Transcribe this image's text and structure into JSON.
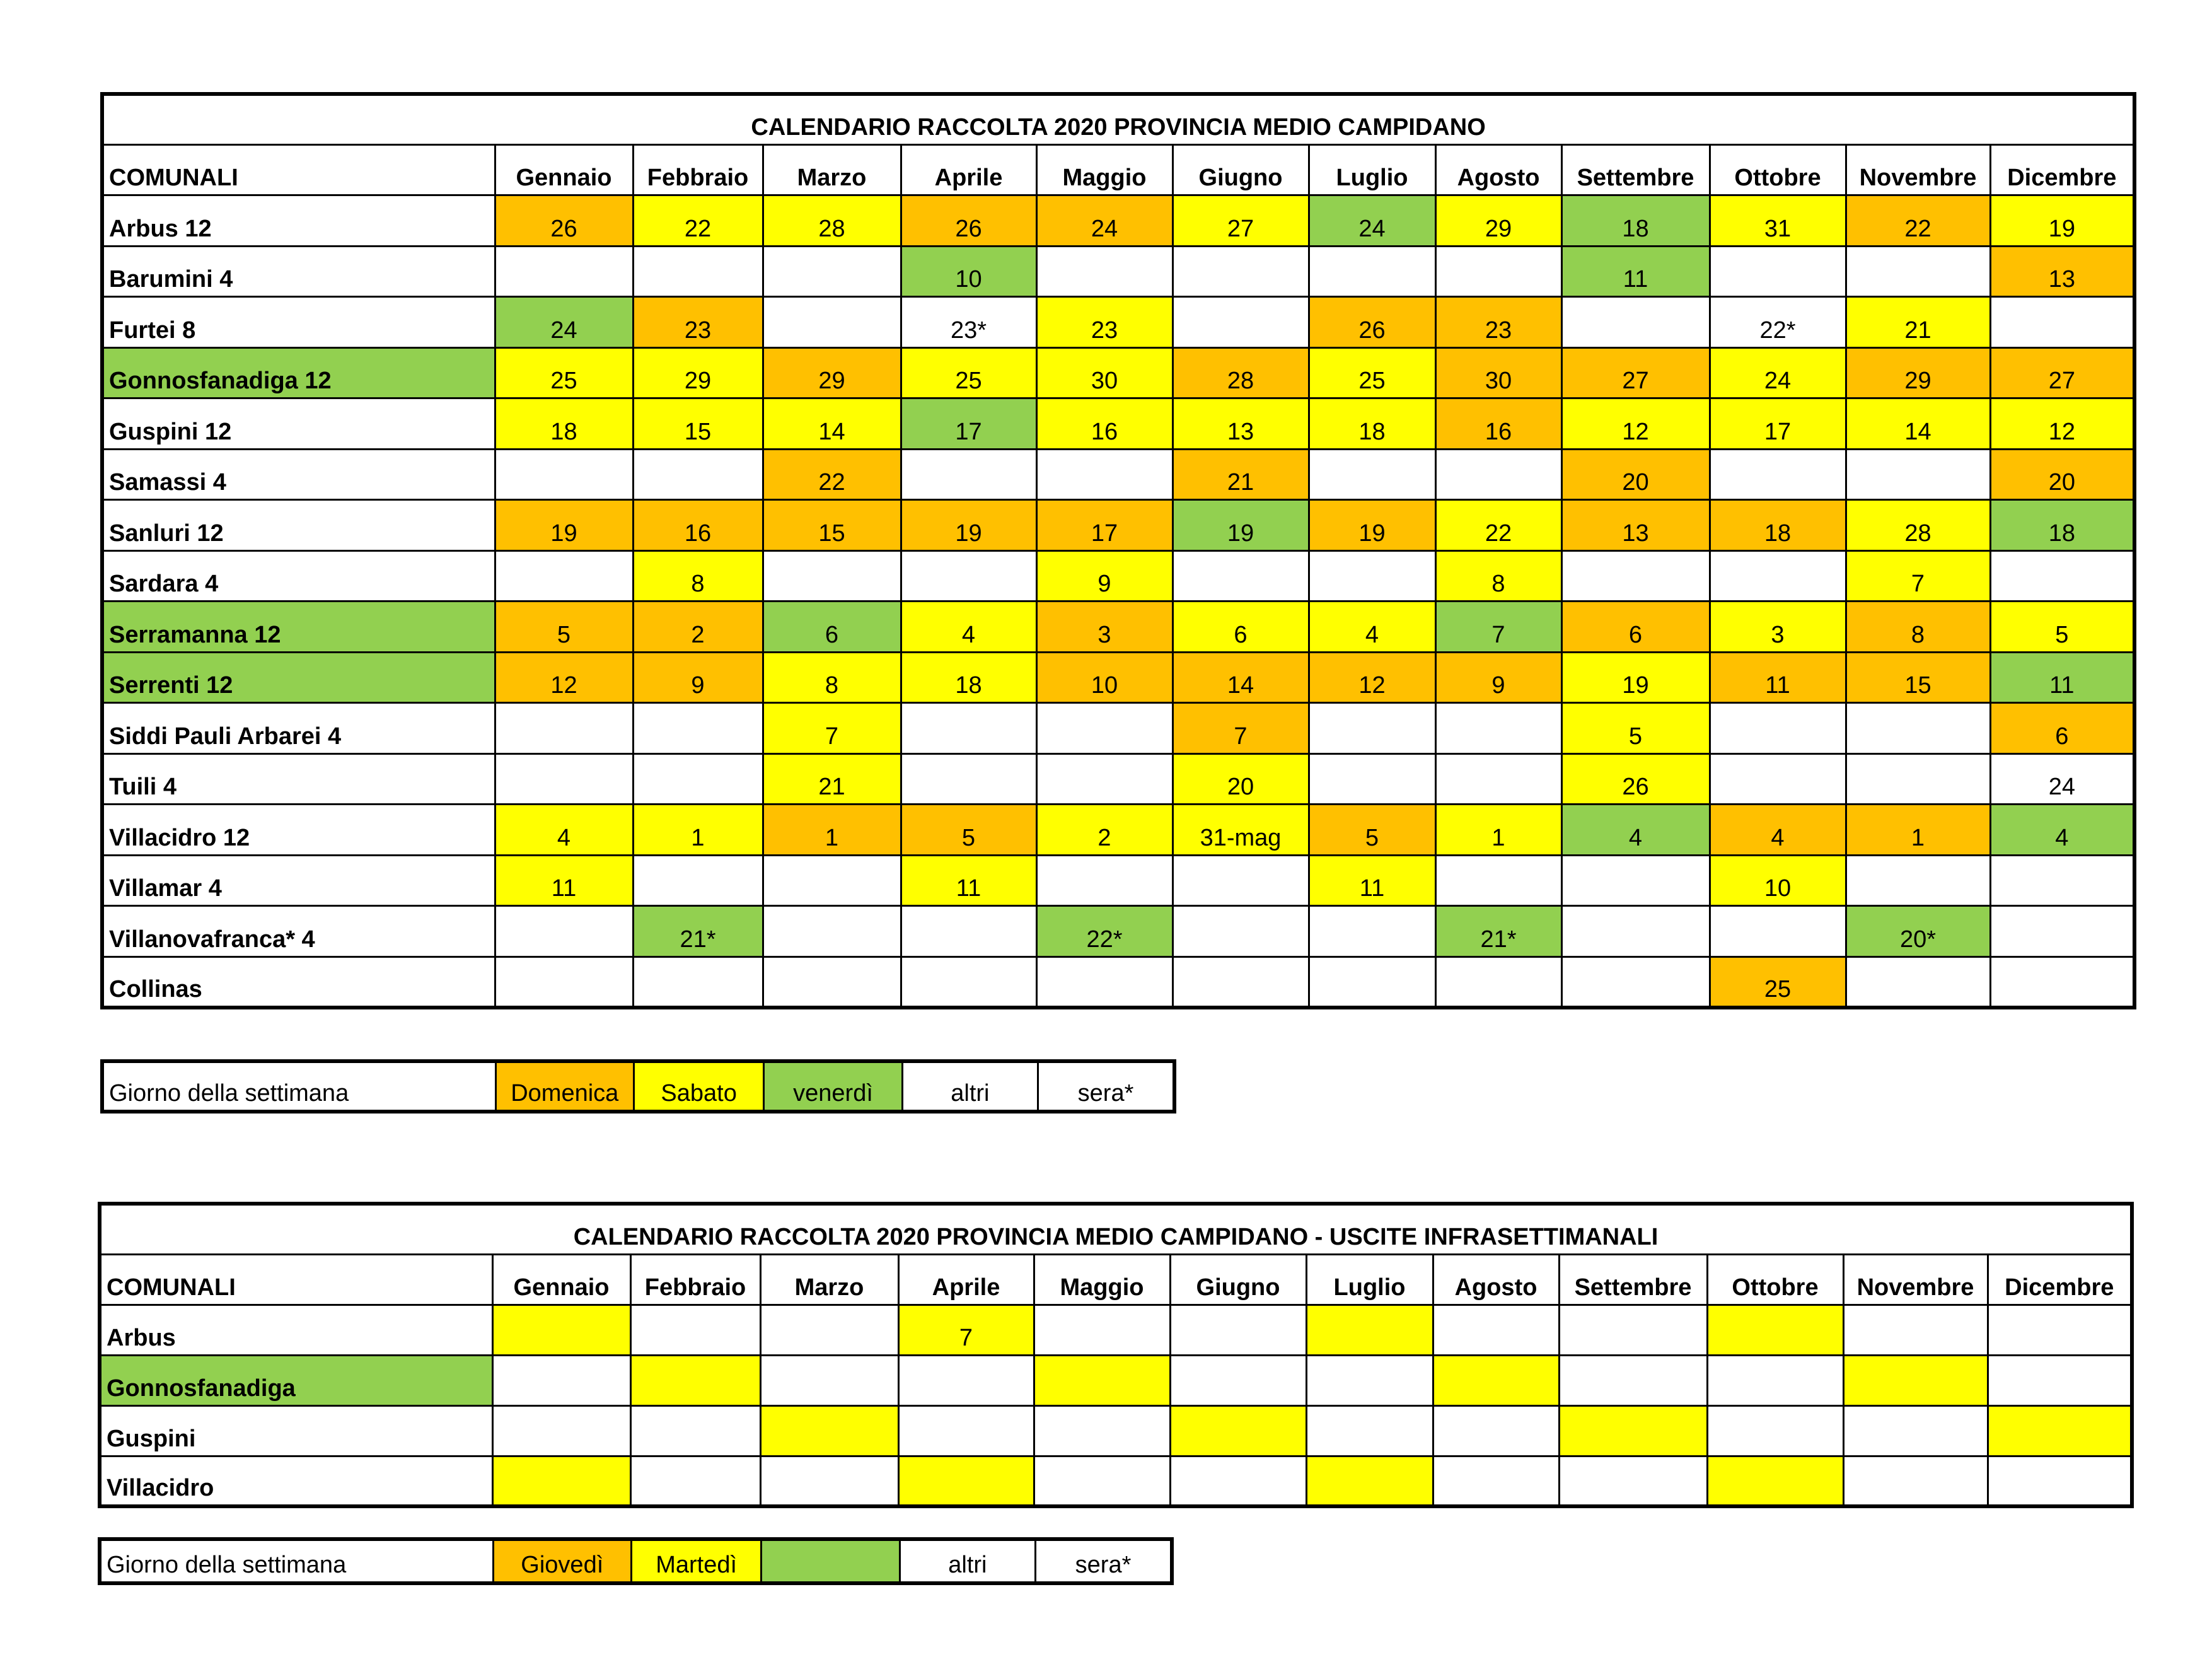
{
  "colors": {
    "domenica": "#ffc000",
    "sabato": "#ffff00",
    "venerdi": "#92d050",
    "altri": "#ffffff"
  },
  "months": [
    "Gennaio",
    "Febbraio",
    "Marzo",
    "Aprile",
    "Maggio",
    "Giugno",
    "Luglio",
    "Agosto",
    "Settembre",
    "Ottobre",
    "Novembre",
    "Dicembre"
  ],
  "table1": {
    "title": "CALENDARIO RACCOLTA 2020 PROVINCIA MEDIO CAMPIDANO",
    "col_header": "COMUNALI",
    "rows": [
      {
        "name": "Arbus  12",
        "color": "w",
        "cells": [
          {
            "v": "26",
            "c": "o"
          },
          {
            "v": "22",
            "c": "y"
          },
          {
            "v": "28",
            "c": "y"
          },
          {
            "v": "26",
            "c": "o"
          },
          {
            "v": "24",
            "c": "o"
          },
          {
            "v": "27",
            "c": "y"
          },
          {
            "v": "24",
            "c": "g"
          },
          {
            "v": "29",
            "c": "y"
          },
          {
            "v": "18",
            "c": "g"
          },
          {
            "v": "31",
            "c": "y"
          },
          {
            "v": "22",
            "c": "o"
          },
          {
            "v": "19",
            "c": "y"
          }
        ]
      },
      {
        "name": "Barumini 4",
        "color": "w",
        "cells": [
          {
            "v": "",
            "c": "w"
          },
          {
            "v": "",
            "c": "w"
          },
          {
            "v": "",
            "c": "w"
          },
          {
            "v": "10",
            "c": "g"
          },
          {
            "v": "",
            "c": "w"
          },
          {
            "v": "",
            "c": "w"
          },
          {
            "v": "",
            "c": "w"
          },
          {
            "v": "",
            "c": "w"
          },
          {
            "v": "11",
            "c": "g"
          },
          {
            "v": "",
            "c": "w"
          },
          {
            "v": "",
            "c": "w"
          },
          {
            "v": "13",
            "c": "o"
          }
        ]
      },
      {
        "name": "Furtei 8",
        "color": "w",
        "cells": [
          {
            "v": "24",
            "c": "g"
          },
          {
            "v": "23",
            "c": "o"
          },
          {
            "v": "",
            "c": "w"
          },
          {
            "v": "23*",
            "c": "w"
          },
          {
            "v": "23",
            "c": "y"
          },
          {
            "v": "",
            "c": "w"
          },
          {
            "v": "26",
            "c": "o"
          },
          {
            "v": "23",
            "c": "o"
          },
          {
            "v": "",
            "c": "w"
          },
          {
            "v": "22*",
            "c": "w"
          },
          {
            "v": "21",
            "c": "y"
          },
          {
            "v": "",
            "c": "w"
          }
        ]
      },
      {
        "name": "Gonnosfanadiga 12",
        "color": "g",
        "cells": [
          {
            "v": "25",
            "c": "y"
          },
          {
            "v": "29",
            "c": "y"
          },
          {
            "v": "29",
            "c": "o"
          },
          {
            "v": "25",
            "c": "y"
          },
          {
            "v": "30",
            "c": "y"
          },
          {
            "v": "28",
            "c": "o"
          },
          {
            "v": "25",
            "c": "y"
          },
          {
            "v": "30",
            "c": "o"
          },
          {
            "v": "27",
            "c": "o"
          },
          {
            "v": "24",
            "c": "y"
          },
          {
            "v": "29",
            "c": "o"
          },
          {
            "v": "27",
            "c": "o"
          }
        ]
      },
      {
        "name": "Guspini 12",
        "color": "w",
        "cells": [
          {
            "v": "18",
            "c": "y"
          },
          {
            "v": "15",
            "c": "y"
          },
          {
            "v": "14",
            "c": "y"
          },
          {
            "v": "17",
            "c": "g"
          },
          {
            "v": "16",
            "c": "y"
          },
          {
            "v": "13",
            "c": "y"
          },
          {
            "v": "18",
            "c": "y"
          },
          {
            "v": "16",
            "c": "o"
          },
          {
            "v": "12",
            "c": "y"
          },
          {
            "v": "17",
            "c": "y"
          },
          {
            "v": "14",
            "c": "y"
          },
          {
            "v": "12",
            "c": "y"
          }
        ]
      },
      {
        "name": "Samassi 4",
        "color": "w",
        "cells": [
          {
            "v": "",
            "c": "w"
          },
          {
            "v": "",
            "c": "w"
          },
          {
            "v": "22",
            "c": "o"
          },
          {
            "v": "",
            "c": "w"
          },
          {
            "v": "",
            "c": "w"
          },
          {
            "v": "21",
            "c": "o"
          },
          {
            "v": "",
            "c": "w"
          },
          {
            "v": "",
            "c": "w"
          },
          {
            "v": "20",
            "c": "o"
          },
          {
            "v": "",
            "c": "w"
          },
          {
            "v": "",
            "c": "w"
          },
          {
            "v": "20",
            "c": "o"
          }
        ]
      },
      {
        "name": "Sanluri  12",
        "color": "w",
        "cells": [
          {
            "v": "19",
            "c": "o"
          },
          {
            "v": "16",
            "c": "o"
          },
          {
            "v": "15",
            "c": "o"
          },
          {
            "v": "19",
            "c": "o"
          },
          {
            "v": "17",
            "c": "o"
          },
          {
            "v": "19",
            "c": "g"
          },
          {
            "v": "19",
            "c": "o"
          },
          {
            "v": "22",
            "c": "y"
          },
          {
            "v": "13",
            "c": "o"
          },
          {
            "v": "18",
            "c": "o"
          },
          {
            "v": "28",
            "c": "y"
          },
          {
            "v": "18",
            "c": "g"
          }
        ]
      },
      {
        "name": "Sardara  4",
        "color": "w",
        "cells": [
          {
            "v": "",
            "c": "w"
          },
          {
            "v": "8",
            "c": "y"
          },
          {
            "v": "",
            "c": "w"
          },
          {
            "v": "",
            "c": "w"
          },
          {
            "v": "9",
            "c": "y"
          },
          {
            "v": "",
            "c": "w"
          },
          {
            "v": "",
            "c": "w"
          },
          {
            "v": "8",
            "c": "y"
          },
          {
            "v": "",
            "c": "w"
          },
          {
            "v": "",
            "c": "w"
          },
          {
            "v": "7",
            "c": "y"
          },
          {
            "v": "",
            "c": "w"
          }
        ]
      },
      {
        "name": "Serramanna 12",
        "color": "g",
        "cells": [
          {
            "v": "5",
            "c": "o"
          },
          {
            "v": "2",
            "c": "o"
          },
          {
            "v": "6",
            "c": "g"
          },
          {
            "v": "4",
            "c": "y"
          },
          {
            "v": "3",
            "c": "o"
          },
          {
            "v": "6",
            "c": "y"
          },
          {
            "v": "4",
            "c": "y"
          },
          {
            "v": "7",
            "c": "g"
          },
          {
            "v": "6",
            "c": "o"
          },
          {
            "v": "3",
            "c": "y"
          },
          {
            "v": "8",
            "c": "o"
          },
          {
            "v": "5",
            "c": "y"
          }
        ]
      },
      {
        "name": "Serrenti 12",
        "color": "g",
        "cells": [
          {
            "v": "12",
            "c": "o"
          },
          {
            "v": "9",
            "c": "o"
          },
          {
            "v": "8",
            "c": "y"
          },
          {
            "v": "18",
            "c": "y"
          },
          {
            "v": "10",
            "c": "o"
          },
          {
            "v": "14",
            "c": "o"
          },
          {
            "v": "12",
            "c": "o"
          },
          {
            "v": "9",
            "c": "o"
          },
          {
            "v": "19",
            "c": "y"
          },
          {
            "v": "11",
            "c": "o"
          },
          {
            "v": "15",
            "c": "o"
          },
          {
            "v": "11",
            "c": "g"
          }
        ]
      },
      {
        "name": "Siddi Pauli Arbarei 4",
        "color": "w",
        "cells": [
          {
            "v": "",
            "c": "w"
          },
          {
            "v": "",
            "c": "w"
          },
          {
            "v": "7",
            "c": "y"
          },
          {
            "v": "",
            "c": "w"
          },
          {
            "v": "",
            "c": "w"
          },
          {
            "v": "7",
            "c": "o"
          },
          {
            "v": "",
            "c": "w"
          },
          {
            "v": "",
            "c": "w"
          },
          {
            "v": "5",
            "c": "y"
          },
          {
            "v": "",
            "c": "w"
          },
          {
            "v": "",
            "c": "w"
          },
          {
            "v": "6",
            "c": "o"
          }
        ]
      },
      {
        "name": "Tuili 4",
        "color": "w",
        "cells": [
          {
            "v": "",
            "c": "w"
          },
          {
            "v": "",
            "c": "w"
          },
          {
            "v": "21",
            "c": "y"
          },
          {
            "v": "",
            "c": "w"
          },
          {
            "v": "",
            "c": "w"
          },
          {
            "v": "20",
            "c": "y"
          },
          {
            "v": "",
            "c": "w"
          },
          {
            "v": "",
            "c": "w"
          },
          {
            "v": "26",
            "c": "y"
          },
          {
            "v": "",
            "c": "w"
          },
          {
            "v": "",
            "c": "w"
          },
          {
            "v": "24",
            "c": "w"
          }
        ]
      },
      {
        "name": "Villacidro 12",
        "color": "w",
        "cells": [
          {
            "v": "4",
            "c": "y"
          },
          {
            "v": "1",
            "c": "y"
          },
          {
            "v": "1",
            "c": "o"
          },
          {
            "v": "5",
            "c": "o"
          },
          {
            "v": "2",
            "c": "y"
          },
          {
            "v": "31-mag",
            "c": "y"
          },
          {
            "v": "5",
            "c": "o"
          },
          {
            "v": "1",
            "c": "y"
          },
          {
            "v": "4",
            "c": "g"
          },
          {
            "v": "4",
            "c": "o"
          },
          {
            "v": "1",
            "c": "o"
          },
          {
            "v": "4",
            "c": "g"
          }
        ]
      },
      {
        "name": "Villamar 4",
        "color": "w",
        "cells": [
          {
            "v": "11",
            "c": "y"
          },
          {
            "v": "",
            "c": "w"
          },
          {
            "v": "",
            "c": "w"
          },
          {
            "v": "11",
            "c": "y"
          },
          {
            "v": "",
            "c": "w"
          },
          {
            "v": "",
            "c": "w"
          },
          {
            "v": "11",
            "c": "y"
          },
          {
            "v": "",
            "c": "w"
          },
          {
            "v": "",
            "c": "w"
          },
          {
            "v": "10",
            "c": "y"
          },
          {
            "v": "",
            "c": "w"
          },
          {
            "v": "",
            "c": "w"
          }
        ]
      },
      {
        "name": "Villanovafranca* 4",
        "color": "w",
        "cells": [
          {
            "v": "",
            "c": "w"
          },
          {
            "v": "21*",
            "c": "g"
          },
          {
            "v": "",
            "c": "w"
          },
          {
            "v": "",
            "c": "w"
          },
          {
            "v": "22*",
            "c": "g"
          },
          {
            "v": "",
            "c": "w"
          },
          {
            "v": "",
            "c": "w"
          },
          {
            "v": "21*",
            "c": "g"
          },
          {
            "v": "",
            "c": "w"
          },
          {
            "v": "",
            "c": "w"
          },
          {
            "v": "20*",
            "c": "g"
          },
          {
            "v": "",
            "c": "w"
          }
        ]
      },
      {
        "name": "Collinas",
        "color": "w",
        "cells": [
          {
            "v": "",
            "c": "w"
          },
          {
            "v": "",
            "c": "w"
          },
          {
            "v": "",
            "c": "w"
          },
          {
            "v": "",
            "c": "w"
          },
          {
            "v": "",
            "c": "w"
          },
          {
            "v": "",
            "c": "w"
          },
          {
            "v": "",
            "c": "w"
          },
          {
            "v": "",
            "c": "w"
          },
          {
            "v": "",
            "c": "w"
          },
          {
            "v": "25",
            "c": "o"
          },
          {
            "v": "",
            "c": "w"
          },
          {
            "v": "",
            "c": "w"
          }
        ]
      }
    ]
  },
  "legend1": {
    "label": "Giorno della settimana",
    "items": [
      {
        "text": "Domenica",
        "c": "o"
      },
      {
        "text": "Sabato",
        "c": "y"
      },
      {
        "text": "venerdì",
        "c": "g"
      },
      {
        "text": "altri",
        "c": "w"
      },
      {
        "text": "sera*",
        "c": "w"
      }
    ]
  },
  "table2": {
    "title": "CALENDARIO RACCOLTA 2020 PROVINCIA MEDIO CAMPIDANO - USCITE INFRASETTIMANALI",
    "col_header": "COMUNALI",
    "rows": [
      {
        "name": "Arbus",
        "color": "w",
        "cells": [
          {
            "v": "",
            "c": "y"
          },
          {
            "v": "",
            "c": "w"
          },
          {
            "v": "",
            "c": "w"
          },
          {
            "v": "7",
            "c": "y"
          },
          {
            "v": "",
            "c": "w"
          },
          {
            "v": "",
            "c": "w"
          },
          {
            "v": "",
            "c": "y"
          },
          {
            "v": "",
            "c": "w"
          },
          {
            "v": "",
            "c": "w"
          },
          {
            "v": "",
            "c": "y"
          },
          {
            "v": "",
            "c": "w"
          },
          {
            "v": "",
            "c": "w"
          }
        ]
      },
      {
        "name": "Gonnosfanadiga",
        "color": "g",
        "cells": [
          {
            "v": "",
            "c": "w"
          },
          {
            "v": "",
            "c": "y"
          },
          {
            "v": "",
            "c": "w"
          },
          {
            "v": "",
            "c": "w"
          },
          {
            "v": "",
            "c": "y"
          },
          {
            "v": "",
            "c": "w"
          },
          {
            "v": "",
            "c": "w"
          },
          {
            "v": "",
            "c": "y"
          },
          {
            "v": "",
            "c": "w"
          },
          {
            "v": "",
            "c": "w"
          },
          {
            "v": "",
            "c": "y"
          },
          {
            "v": "",
            "c": "w"
          }
        ]
      },
      {
        "name": "Guspini",
        "color": "w",
        "cells": [
          {
            "v": "",
            "c": "w"
          },
          {
            "v": "",
            "c": "w"
          },
          {
            "v": "",
            "c": "y"
          },
          {
            "v": "",
            "c": "w"
          },
          {
            "v": "",
            "c": "w"
          },
          {
            "v": "",
            "c": "y"
          },
          {
            "v": "",
            "c": "w"
          },
          {
            "v": "",
            "c": "w"
          },
          {
            "v": "",
            "c": "y"
          },
          {
            "v": "",
            "c": "w"
          },
          {
            "v": "",
            "c": "w"
          },
          {
            "v": "",
            "c": "y"
          }
        ]
      },
      {
        "name": "Villacidro",
        "color": "w",
        "cells": [
          {
            "v": "",
            "c": "y"
          },
          {
            "v": "",
            "c": "w"
          },
          {
            "v": "",
            "c": "w"
          },
          {
            "v": "",
            "c": "y"
          },
          {
            "v": "",
            "c": "w"
          },
          {
            "v": "",
            "c": "w"
          },
          {
            "v": "",
            "c": "y"
          },
          {
            "v": "",
            "c": "w"
          },
          {
            "v": "",
            "c": "w"
          },
          {
            "v": "",
            "c": "y"
          },
          {
            "v": "",
            "c": "w"
          },
          {
            "v": "",
            "c": "w"
          }
        ]
      }
    ]
  },
  "legend2": {
    "label": "Giorno della settimana",
    "items": [
      {
        "text": "Giovedì",
        "c": "o"
      },
      {
        "text": "Martedì",
        "c": "y"
      },
      {
        "text": "",
        "c": "g"
      },
      {
        "text": "altri",
        "c": "w"
      },
      {
        "text": "sera*",
        "c": "w"
      }
    ]
  }
}
